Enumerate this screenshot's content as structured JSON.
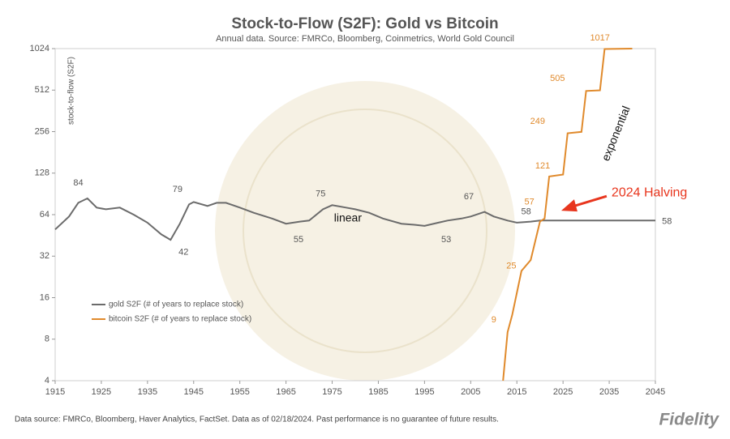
{
  "chart_data": {
    "type": "line",
    "title": "Stock-to-Flow (S2F): Gold vs Bitcoin",
    "subtitle": "Annual data.  Source: FMRCo, Bloomberg, Coinmetrics, World Gold Council",
    "y_label": "stock-to-flow (S2F)",
    "log_scale_y": true,
    "grid": false,
    "xlim": [
      1915,
      2045
    ],
    "xticks": [
      1915,
      1925,
      1935,
      1945,
      1955,
      1965,
      1975,
      1985,
      1995,
      2005,
      2015,
      2025,
      2035,
      2045
    ],
    "ylim": [
      4,
      1024
    ],
    "yticks": [
      4,
      8,
      16,
      32,
      64,
      128,
      256,
      512,
      1024
    ],
    "series": [
      {
        "name": "gold S2F (# of years to replace stock)",
        "color": "#6b6b6b",
        "x": [
          1915,
          1918,
          1920,
          1922,
          1924,
          1926,
          1929,
          1932,
          1935,
          1938,
          1940,
          1942,
          1944,
          1945,
          1948,
          1950,
          1952,
          1955,
          1958,
          1962,
          1965,
          1968,
          1970,
          1973,
          1975,
          1978,
          1980,
          1983,
          1986,
          1990,
          1993,
          1995,
          1998,
          2000,
          2003,
          2005,
          2008,
          2010,
          2013,
          2015,
          2018,
          2020,
          2024,
          2030,
          2045
        ],
        "values": [
          50,
          62,
          78,
          84,
          72,
          70,
          72,
          64,
          56,
          46,
          42,
          55,
          76,
          79,
          74,
          78,
          78,
          72,
          66,
          60,
          55,
          57,
          58,
          70,
          75,
          72,
          70,
          66,
          60,
          55,
          54,
          53,
          56,
          58,
          60,
          62,
          67,
          62,
          58,
          56,
          57,
          58,
          58,
          58,
          58
        ]
      },
      {
        "name": "bitcoin S2F (# of years to replace stock)",
        "color": "#e08a2c",
        "x": [
          2012,
          2013,
          2014,
          2016,
          2018,
          2020,
          2021,
          2022,
          2025,
          2026,
          2029,
          2030,
          2033,
          2034,
          2040
        ],
        "values": [
          4,
          9,
          12,
          25,
          30,
          57,
          60,
          121,
          125,
          249,
          255,
          505,
          510,
          1017,
          1024
        ]
      }
    ],
    "legend": "center-left",
    "annotations": [
      {
        "text": "84",
        "x": 1920,
        "y": 108
      },
      {
        "text": "79",
        "x": 1941.5,
        "y": 97
      },
      {
        "text": "75",
        "x": 1972.5,
        "y": 90
      },
      {
        "text": "67",
        "x": 2004.6,
        "y": 86
      },
      {
        "text": "58",
        "x": 2017,
        "y": 67
      },
      {
        "text": "57",
        "x": 2017.7,
        "y": 79,
        "color": "#e08a2c"
      },
      {
        "text": "55",
        "x": 1967.7,
        "y": 42
      },
      {
        "text": "42",
        "x": 1942.8,
        "y": 34
      },
      {
        "text": "53",
        "x": 1999.7,
        "y": 42
      },
      {
        "text": "58",
        "x": 2047.5,
        "y": 57
      },
      {
        "text": "9",
        "x": 2010,
        "y": 11,
        "color": "#e08a2c"
      },
      {
        "text": "25",
        "x": 2013.8,
        "y": 27,
        "color": "#e08a2c"
      },
      {
        "text": "121",
        "x": 2020.6,
        "y": 144,
        "color": "#e08a2c"
      },
      {
        "text": "249",
        "x": 2019.5,
        "y": 302,
        "color": "#e08a2c"
      },
      {
        "text": "505",
        "x": 2023.8,
        "y": 621,
        "color": "#e08a2c"
      },
      {
        "text": "1017",
        "x": 2033,
        "y": 1218,
        "color": "#e08a2c"
      },
      {
        "text": "linear",
        "x": 1978.4,
        "y": 60,
        "color": "#111",
        "size": 14
      },
      {
        "text": "exponential",
        "x": 2036.6,
        "y": 247,
        "color": "#111",
        "size": 14,
        "rotate": -68
      },
      {
        "text": "2024 Halving",
        "x": 2035.5,
        "y": 92,
        "color": "#e8361e",
        "size": 16,
        "anchor": "start",
        "arrow": true
      }
    ]
  },
  "footer": {
    "note": "Data source: FMRCo, Bloomberg, Haver Analytics, FactSet. Data as of 02/18/2024. Past performance is no guarantee of future results.",
    "logo": "Fidelity"
  }
}
